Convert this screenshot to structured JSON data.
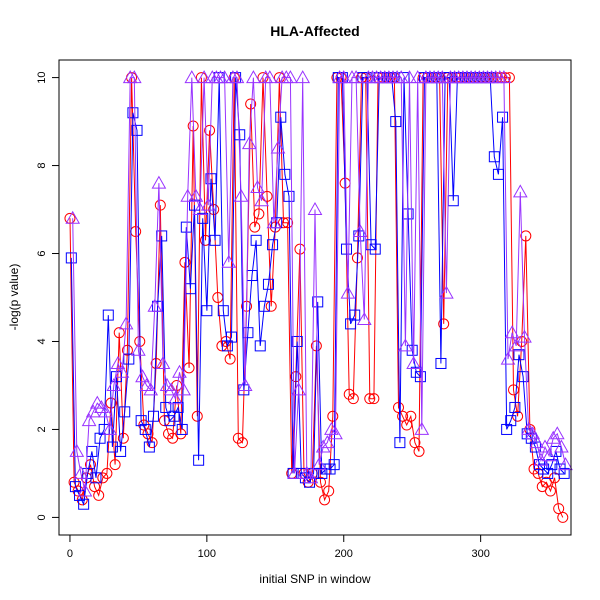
{
  "chart_data": {
    "type": "line",
    "title": "HLA-Affected",
    "xlabel": "initial SNP in window",
    "ylabel": "-log(p value)",
    "xlim": [
      -8,
      366
    ],
    "ylim": [
      -0.4,
      10.4
    ],
    "xticks": [
      0,
      100,
      200,
      300
    ],
    "yticks": [
      0,
      2,
      4,
      6,
      8,
      10
    ],
    "grid": false,
    "legend": "none",
    "series": [
      {
        "marker": "circle",
        "color": "#ff0000",
        "x": [
          0,
          3,
          6,
          9,
          12,
          15,
          18,
          21,
          24,
          27,
          30,
          33,
          36,
          39,
          42,
          45,
          48,
          51,
          54,
          57,
          60,
          63,
          66,
          69,
          72,
          75,
          78,
          81,
          84,
          87,
          90,
          93,
          96,
          99,
          102,
          105,
          108,
          111,
          114,
          117,
          120,
          123,
          126,
          129,
          132,
          135,
          138,
          141,
          144,
          147,
          150,
          153,
          156,
          159,
          162,
          165,
          168,
          171,
          174,
          177,
          180,
          183,
          186,
          189,
          192,
          195,
          198,
          201,
          204,
          207,
          210,
          213,
          216,
          219,
          222,
          225,
          228,
          231,
          234,
          237,
          240,
          243,
          246,
          249,
          252,
          255,
          258,
          261,
          264,
          267,
          270,
          273,
          276,
          279,
          282,
          285,
          288,
          291,
          294,
          297,
          300,
          303,
          306,
          309,
          312,
          315,
          318,
          321,
          324,
          327,
          330,
          333,
          336,
          339,
          342,
          345,
          348,
          351,
          354,
          357,
          360
        ],
        "y": [
          6.8,
          0.8,
          0.6,
          0.4,
          0.9,
          1.2,
          0.7,
          0.5,
          0.9,
          1.0,
          2.6,
          1.2,
          4.2,
          1.8,
          3.8,
          10.0,
          6.5,
          4.0,
          2.1,
          1.9,
          1.7,
          3.5,
          7.1,
          2.2,
          1.9,
          1.8,
          3.0,
          1.9,
          5.8,
          3.4,
          8.9,
          2.3,
          10.0,
          6.3,
          8.8,
          7.0,
          5.0,
          3.9,
          4.0,
          3.6,
          10.0,
          1.8,
          1.7,
          4.8,
          9.4,
          6.6,
          6.9,
          10.0,
          7.3,
          4.8,
          6.6,
          10.0,
          6.7,
          6.7,
          1.0,
          3.2,
          6.1,
          1.0,
          0.8,
          1.0,
          3.9,
          0.8,
          0.4,
          0.6,
          2.3,
          10.0,
          10.0,
          7.6,
          2.8,
          2.7,
          5.9,
          10.0,
          10.0,
          2.7,
          2.7,
          10.0,
          10.0,
          10.0,
          10.0,
          10.0,
          2.5,
          2.3,
          2.1,
          2.3,
          1.7,
          1.5,
          10.0,
          10.0,
          10.0,
          10.0,
          10.0,
          4.4,
          10.0,
          10.0,
          10.0,
          10.0,
          10.0,
          10.0,
          10.0,
          10.0,
          10.0,
          10.0,
          10.0,
          10.0,
          10.0,
          10.0,
          10.0,
          10.0,
          2.9,
          2.3,
          4.0,
          6.4,
          2.0,
          1.1,
          1.0,
          0.7,
          0.8,
          0.6,
          0.9,
          0.2,
          0.0
        ]
      },
      {
        "marker": "square",
        "color": "#0000ff",
        "x": [
          1,
          4,
          7,
          10,
          13,
          16,
          19,
          22,
          25,
          28,
          31,
          34,
          37,
          40,
          43,
          46,
          49,
          52,
          55,
          58,
          61,
          64,
          67,
          70,
          73,
          76,
          79,
          82,
          85,
          88,
          91,
          94,
          97,
          100,
          103,
          106,
          109,
          112,
          115,
          118,
          121,
          124,
          127,
          130,
          133,
          136,
          139,
          142,
          145,
          148,
          151,
          154,
          157,
          160,
          163,
          166,
          169,
          172,
          175,
          178,
          181,
          184,
          187,
          190,
          193,
          196,
          199,
          202,
          205,
          208,
          211,
          214,
          217,
          220,
          223,
          226,
          229,
          232,
          235,
          238,
          241,
          244,
          247,
          250,
          253,
          256,
          259,
          262,
          265,
          268,
          271,
          274,
          277,
          280,
          283,
          286,
          289,
          292,
          295,
          298,
          301,
          304,
          307,
          310,
          313,
          316,
          319,
          322,
          325,
          328,
          331,
          334,
          337,
          340,
          343,
          346,
          349,
          352,
          355,
          358,
          361
        ],
        "y": [
          5.9,
          0.7,
          0.5,
          0.3,
          1.0,
          1.5,
          0.9,
          1.8,
          2.0,
          4.6,
          1.6,
          3.2,
          1.5,
          2.4,
          3.6,
          9.2,
          8.8,
          2.2,
          2.0,
          1.6,
          2.3,
          4.8,
          6.4,
          2.5,
          2.2,
          2.3,
          2.5,
          2.0,
          6.6,
          5.2,
          7.1,
          1.3,
          6.8,
          4.7,
          7.7,
          6.3,
          10.0,
          4.7,
          3.9,
          4.1,
          10.0,
          8.7,
          2.9,
          4.2,
          5.5,
          6.3,
          3.9,
          4.8,
          5.3,
          6.2,
          6.7,
          9.1,
          7.8,
          7.3,
          1.0,
          4.0,
          1.0,
          0.9,
          0.8,
          1.0,
          4.9,
          1.0,
          1.1,
          1.1,
          1.2,
          10.0,
          10.0,
          6.1,
          4.4,
          4.6,
          6.4,
          10.0,
          10.0,
          6.2,
          6.1,
          10.0,
          10.0,
          10.0,
          10.0,
          9.0,
          1.7,
          10.0,
          6.9,
          3.8,
          3.3,
          3.2,
          10.0,
          10.0,
          10.0,
          10.0,
          3.5,
          10.0,
          10.0,
          7.2,
          10.0,
          10.0,
          10.0,
          10.0,
          10.0,
          10.0,
          10.0,
          10.0,
          10.0,
          8.2,
          7.8,
          9.1,
          2.0,
          2.2,
          2.5,
          3.7,
          3.2,
          1.9,
          1.8,
          1.6,
          1.2,
          1.1,
          1.0,
          1.2,
          1.5,
          1.1,
          1.0
        ]
      },
      {
        "marker": "triangle",
        "color": "#9933ff",
        "x": [
          2,
          5,
          8,
          11,
          14,
          17,
          20,
          23,
          26,
          29,
          32,
          35,
          38,
          41,
          44,
          47,
          50,
          53,
          56,
          59,
          62,
          65,
          68,
          71,
          74,
          77,
          80,
          83,
          86,
          89,
          92,
          95,
          98,
          101,
          104,
          107,
          110,
          113,
          116,
          119,
          122,
          125,
          128,
          131,
          134,
          137,
          140,
          143,
          146,
          149,
          152,
          155,
          158,
          161,
          164,
          167,
          170,
          173,
          176,
          179,
          182,
          185,
          188,
          191,
          194,
          197,
          200,
          203,
          206,
          209,
          212,
          215,
          218,
          221,
          224,
          227,
          230,
          233,
          236,
          239,
          242,
          245,
          248,
          251,
          254,
          257,
          260,
          263,
          266,
          269,
          272,
          275,
          278,
          281,
          284,
          287,
          290,
          293,
          296,
          299,
          302,
          305,
          308,
          311,
          314,
          317,
          320,
          323,
          326,
          329,
          332,
          335,
          338,
          341,
          344,
          347,
          350,
          353,
          356,
          359,
          362
        ],
        "y": [
          6.8,
          1.5,
          1.0,
          0.6,
          2.2,
          2.4,
          2.6,
          2.5,
          2.4,
          2.0,
          3.0,
          3.5,
          3.3,
          4.4,
          10.0,
          10.0,
          3.8,
          3.2,
          3.0,
          2.9,
          4.8,
          7.6,
          3.5,
          3.0,
          2.9,
          2.7,
          3.3,
          2.9,
          7.3,
          10.0,
          7.3,
          7.0,
          10.0,
          7.1,
          10.0,
          10.0,
          10.0,
          10.0,
          5.8,
          10.0,
          10.0,
          7.3,
          3.0,
          8.5,
          10.0,
          7.5,
          7.2,
          10.0,
          10.0,
          6.7,
          8.4,
          10.0,
          10.0,
          10.0,
          1.0,
          2.9,
          10.0,
          1.0,
          0.9,
          7.0,
          1.2,
          1.6,
          1.7,
          2.0,
          1.9,
          10.0,
          10.0,
          5.1,
          10.0,
          10.0,
          6.5,
          4.5,
          10.0,
          10.0,
          10.0,
          10.0,
          10.0,
          10.0,
          10.0,
          10.0,
          10.0,
          3.9,
          10.0,
          3.5,
          10.0,
          2.0,
          10.0,
          10.0,
          10.0,
          10.0,
          10.0,
          5.1,
          10.0,
          10.0,
          10.0,
          10.0,
          10.0,
          10.0,
          10.0,
          10.0,
          10.0,
          10.0,
          10.0,
          10.0,
          10.0,
          10.0,
          3.6,
          4.2,
          3.9,
          7.4,
          4.1,
          2.0,
          1.9,
          1.7,
          1.3,
          1.6,
          1.4,
          1.8,
          1.9,
          1.6,
          1.2
        ]
      }
    ]
  }
}
